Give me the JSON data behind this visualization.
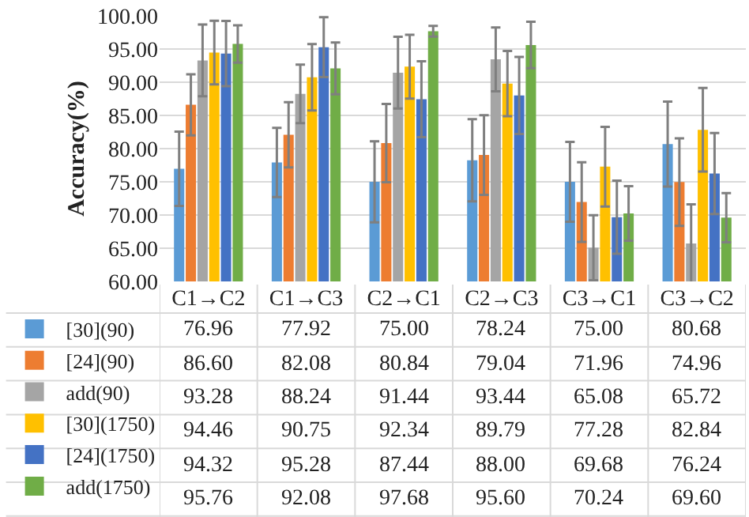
{
  "chart_data": {
    "type": "bar",
    "ylabel": "Accuracy(%)",
    "categories": [
      "C1→C2",
      "C1→C3",
      "C2→C1",
      "C2→C3",
      "C3→C1",
      "C3→C2"
    ],
    "series": [
      {
        "name": "[30](90)",
        "color": "#5b9bd5",
        "values": [
          76.96,
          77.92,
          75.0,
          78.24,
          75.0,
          80.68
        ],
        "value_labels": [
          "76.96",
          "77.92",
          "75.00",
          "78.24",
          "75.00",
          "80.68"
        ],
        "errors": [
          5.6,
          5.2,
          6.1,
          6.2,
          6.0,
          6.4
        ]
      },
      {
        "name": "[24](90)",
        "color": "#ed7d31",
        "values": [
          86.6,
          82.08,
          80.84,
          79.04,
          71.96,
          74.96
        ],
        "value_labels": [
          "86.60",
          "82.08",
          "80.84",
          "79.04",
          "71.96",
          "74.96"
        ],
        "errors": [
          4.6,
          4.9,
          5.9,
          6.0,
          6.0,
          6.6
        ]
      },
      {
        "name": "add(90)",
        "color": "#a5a5a5",
        "values": [
          93.28,
          88.24,
          91.44,
          93.44,
          65.08,
          65.72
        ],
        "value_labels": [
          "93.28",
          "88.24",
          "91.44",
          "93.44",
          "65.08",
          "65.72"
        ],
        "errors": [
          5.4,
          4.4,
          5.4,
          4.8,
          4.9,
          5.9
        ]
      },
      {
        "name": "[30](1750)",
        "color": "#ffc000",
        "values": [
          94.46,
          90.75,
          92.34,
          89.79,
          77.28,
          82.84
        ],
        "value_labels": [
          "94.46",
          "90.75",
          "92.34",
          "89.79",
          "77.28",
          "82.84"
        ],
        "errors": [
          4.8,
          5.0,
          4.8,
          4.9,
          6.0,
          6.3
        ]
      },
      {
        "name": "[24](1750)",
        "color": "#4472c4",
        "values": [
          94.32,
          95.28,
          87.44,
          88.0,
          69.68,
          76.24
        ],
        "value_labels": [
          "94.32",
          "95.28",
          "87.44",
          "88.00",
          "69.68",
          "76.24"
        ],
        "errors": [
          4.9,
          4.5,
          5.7,
          5.8,
          5.5,
          6.1
        ]
      },
      {
        "name": "add(1750)",
        "color": "#70ad47",
        "values": [
          95.76,
          92.08,
          97.68,
          95.6,
          70.24,
          69.6
        ],
        "value_labels": [
          "95.76",
          "92.08",
          "97.68",
          "95.60",
          "70.24",
          "69.60"
        ],
        "errors": [
          2.8,
          3.9,
          0.8,
          3.5,
          4.1,
          3.7
        ]
      }
    ],
    "ylim": [
      60,
      100
    ],
    "yticks": [
      {
        "value": 60,
        "label": "60.00"
      },
      {
        "value": 65,
        "label": "65.00"
      },
      {
        "value": 70,
        "label": "70.00"
      },
      {
        "value": 75,
        "label": "75.00"
      },
      {
        "value": 80,
        "label": "80.00"
      },
      {
        "value": 85,
        "label": "85.00"
      },
      {
        "value": 90,
        "label": "90.00"
      },
      {
        "value": 95,
        "label": "95.00"
      },
      {
        "value": 100,
        "label": "100.00"
      }
    ],
    "grid": "y",
    "legend": "bottom left"
  }
}
